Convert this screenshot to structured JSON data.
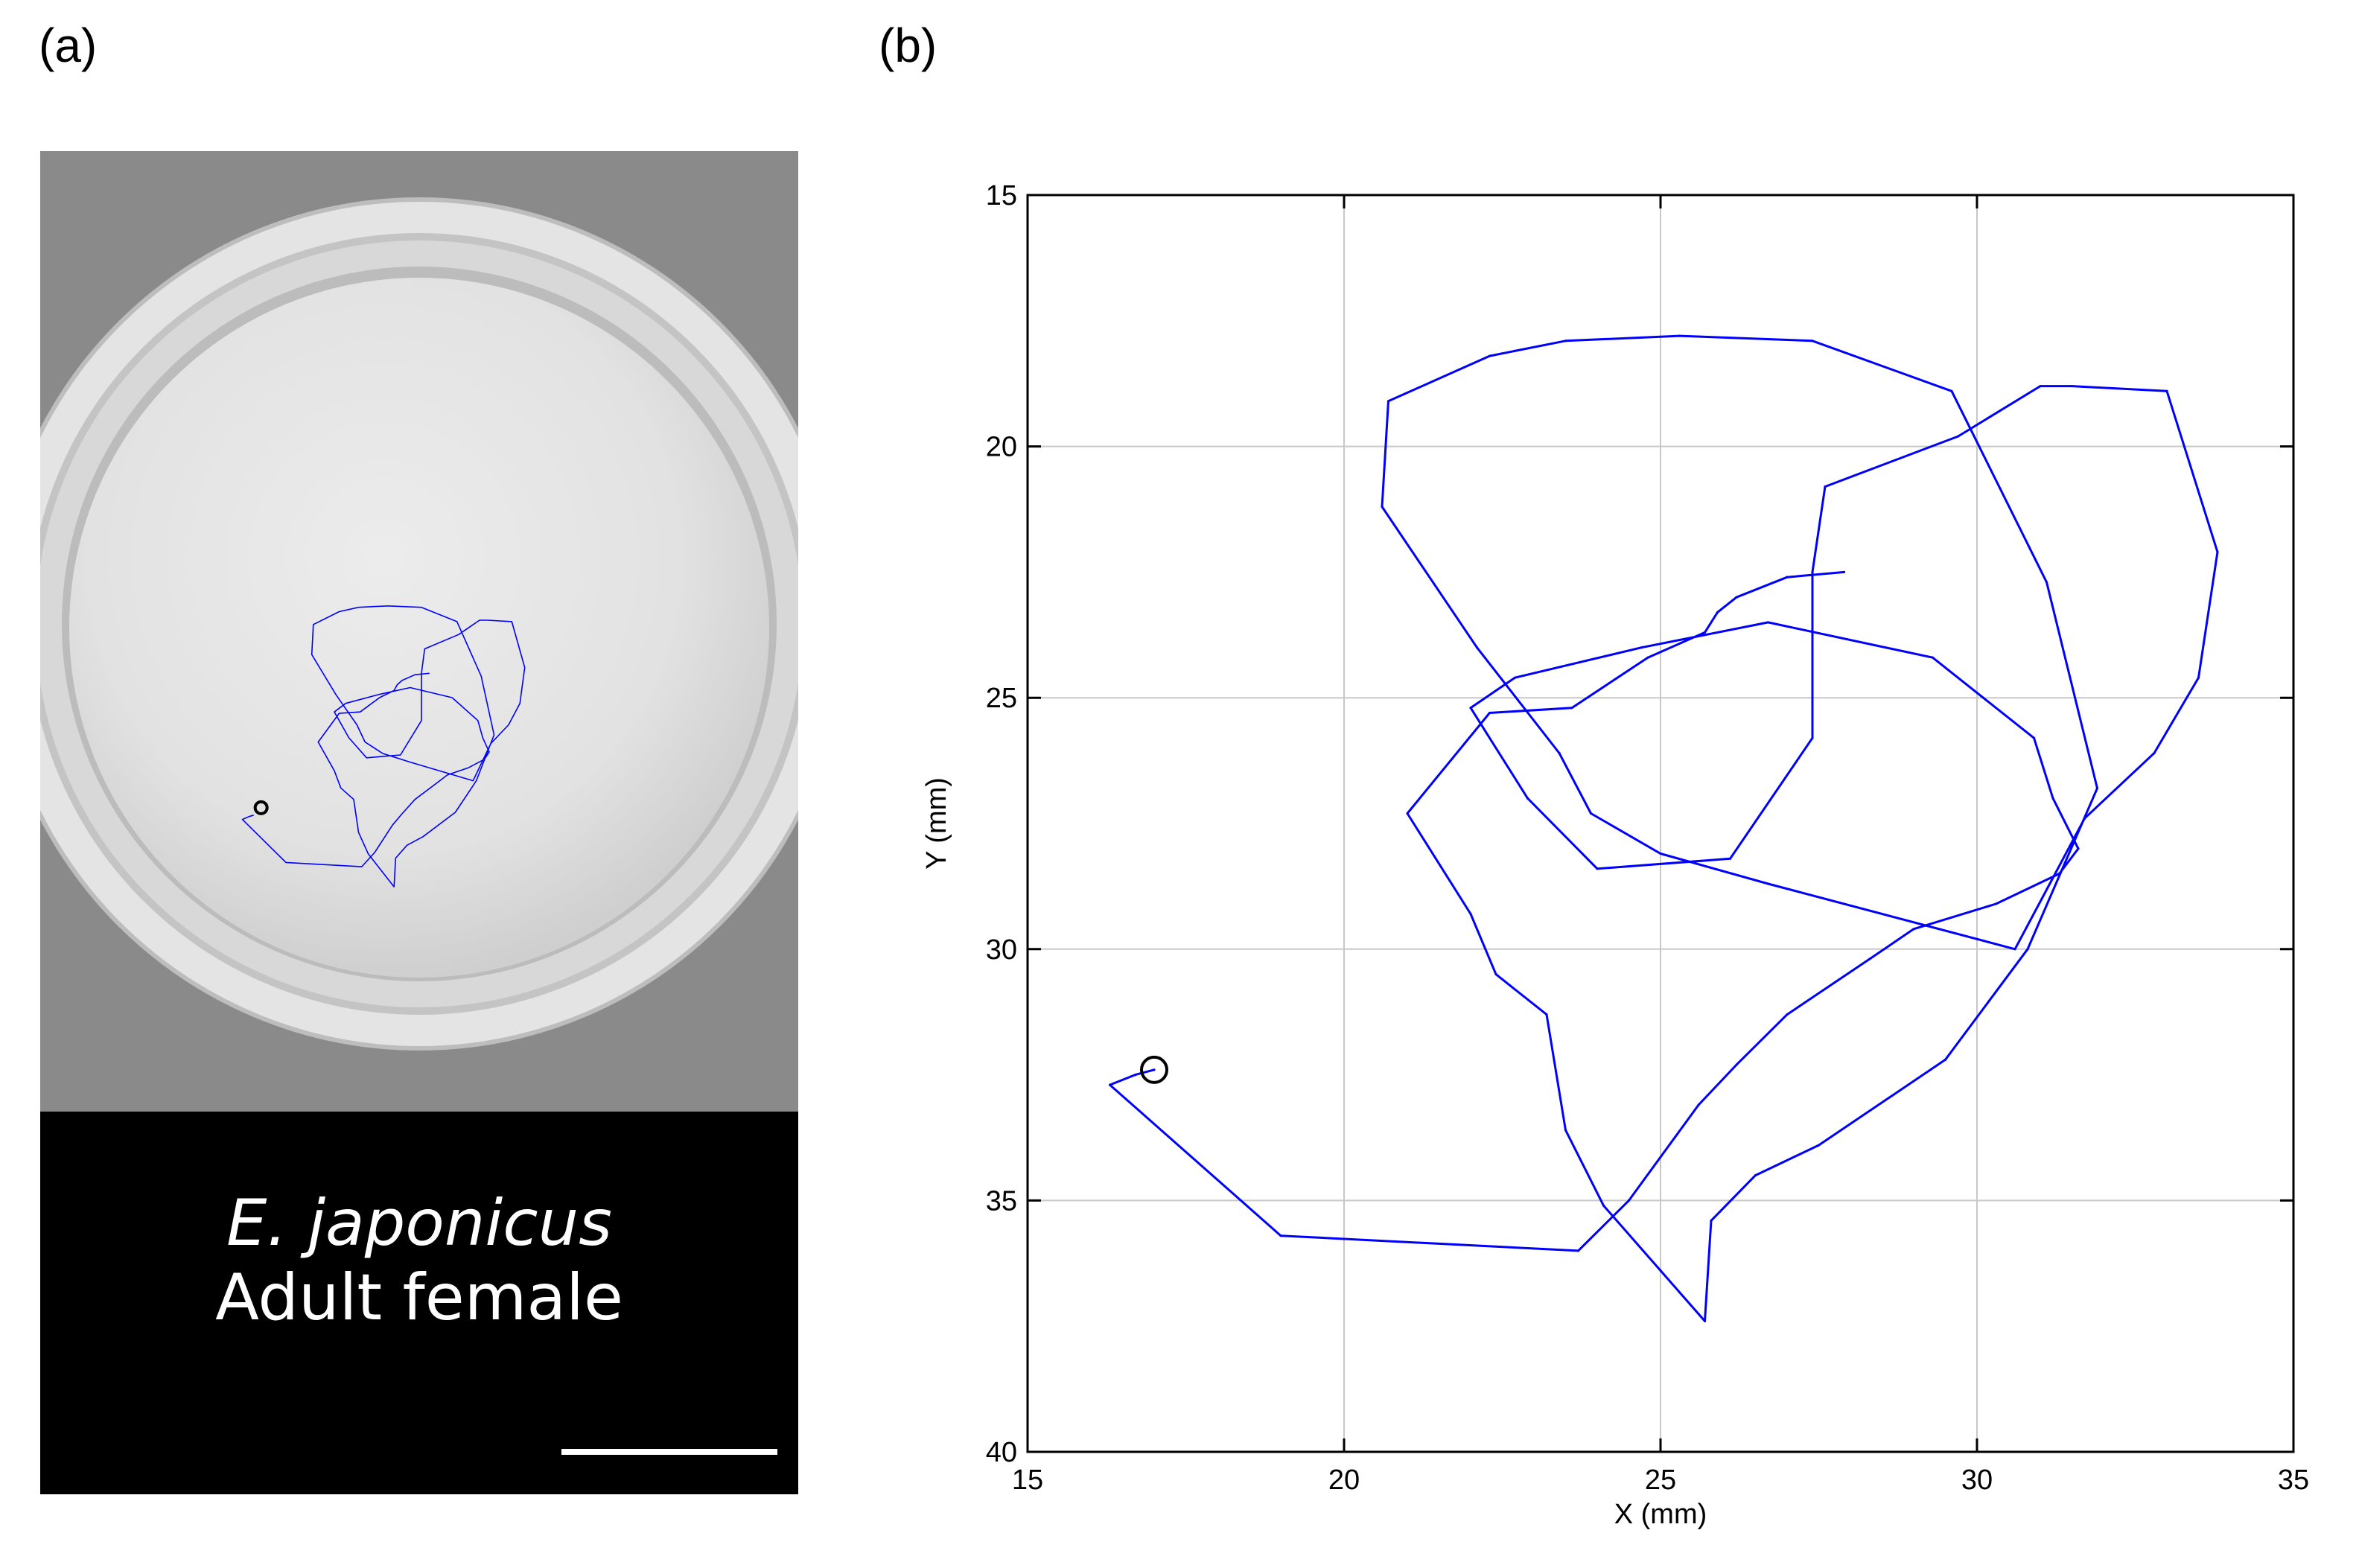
{
  "panels": {
    "a": {
      "letter": "(a)",
      "caption": {
        "species": "E. japonicus",
        "stage": "Adult female"
      }
    },
    "b": {
      "letter": "(b)"
    }
  },
  "colors": {
    "trajectory": "#0000ff",
    "grid": "#c8c8c8",
    "photo_caption_bg": "#000000",
    "caption_text": "#ffffff"
  },
  "chart_data": {
    "type": "line",
    "title": "",
    "xlabel": "X (mm)",
    "ylabel": "Y (mm)",
    "xlim": [
      15,
      35
    ],
    "ylim": [
      15,
      40
    ],
    "y_inverted": true,
    "xticks": [
      15,
      20,
      25,
      30,
      35
    ],
    "yticks": [
      15,
      20,
      25,
      30,
      35,
      40
    ],
    "grid": true,
    "series": [
      {
        "x": [
          17.0,
          16.7,
          16.3,
          19.0,
          23.7,
          24.5,
          25.6,
          26.2,
          27.0,
          28.3,
          29.0,
          30.3,
          31.3,
          31.6,
          31.2,
          30.9,
          29.3,
          26.7,
          24.7,
          22.7,
          22.0,
          22.9,
          24.0,
          26.1,
          27.4,
          27.4,
          27.6,
          29.7,
          31.0,
          31.5,
          33.0,
          33.8,
          33.5,
          32.8,
          31.7,
          30.6,
          26.7,
          25.0,
          23.9,
          23.4,
          22.1,
          20.6,
          20.7,
          22.3,
          23.5,
          25.3,
          27.4,
          29.6,
          31.1,
          31.9,
          30.8,
          29.5,
          27.5,
          26.5,
          25.8,
          25.7,
          24.1,
          23.5,
          23.2,
          22.4,
          22.0,
          21.0,
          22.3,
          23.6,
          24.8,
          25.7,
          25.9,
          26.2,
          27.0,
          27.9
        ],
        "y": [
          32.4,
          32.5,
          32.7,
          35.7,
          36.0,
          35.0,
          33.1,
          32.3,
          31.3,
          30.2,
          29.6,
          29.1,
          28.5,
          28.0,
          27.0,
          25.8,
          24.2,
          23.5,
          24.0,
          24.6,
          25.2,
          27.0,
          28.4,
          28.2,
          25.8,
          22.5,
          20.8,
          19.8,
          18.8,
          18.8,
          18.9,
          22.1,
          24.6,
          26.1,
          27.4,
          30.0,
          28.7,
          28.1,
          27.3,
          26.1,
          24.0,
          21.2,
          19.1,
          18.2,
          17.9,
          17.8,
          17.9,
          18.9,
          22.7,
          26.8,
          30.0,
          32.2,
          33.9,
          34.5,
          35.4,
          37.4,
          35.1,
          33.6,
          31.3,
          30.5,
          29.3,
          27.3,
          25.3,
          25.2,
          24.2,
          23.7,
          23.3,
          23.0,
          22.6,
          22.5
        ],
        "color": "#0000ff"
      }
    ],
    "start_marker": {
      "x": 17.0,
      "y": 32.4,
      "shape": "open circle",
      "color": "#000000"
    }
  }
}
